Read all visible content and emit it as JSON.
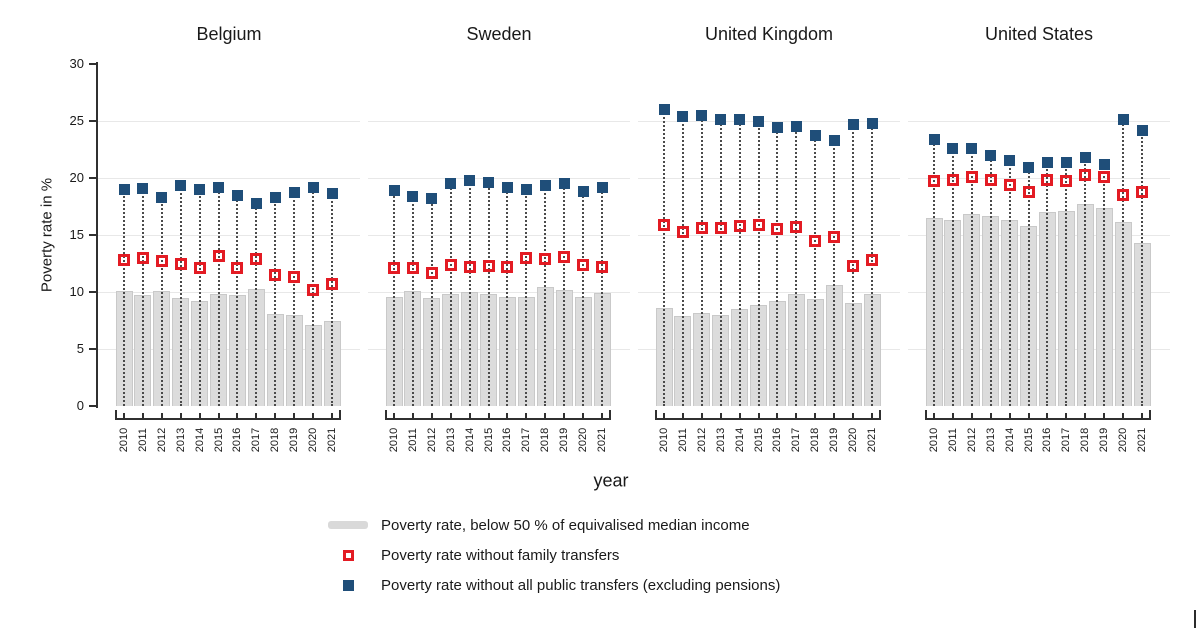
{
  "chart_data": {
    "type": "bar",
    "title": "",
    "xlabel": "year",
    "ylabel": "Poverty rate in %",
    "ylim": [
      0,
      30
    ],
    "yticks": [
      0,
      5,
      10,
      15,
      20,
      25,
      30
    ],
    "gridlines": [
      5,
      10,
      15,
      20,
      25
    ],
    "grid": "horizontal-only",
    "legend_position": "bottom-center",
    "years": [
      "2010",
      "2011",
      "2012",
      "2013",
      "2014",
      "2015",
      "2016",
      "2017",
      "2018",
      "2019",
      "2020",
      "2021"
    ],
    "colors": {
      "bar_fill": "#dcdcdc",
      "bar_border": "#c9c9c9",
      "red_marker": "#e31b23",
      "navy_marker": "#1f4e79",
      "dropline": "#4a4a4a",
      "gridline": "#e8e8e8",
      "axis": "#303030"
    },
    "legend": [
      {
        "series": "poverty_rate",
        "marker": "gray-bar",
        "label": "Poverty rate, below 50 % of equivalised median income"
      },
      {
        "series": "without_family_transfers",
        "marker": "hollow-red-square",
        "label": "Poverty rate without family transfers"
      },
      {
        "series": "without_public_transfers",
        "marker": "filled-navy-square",
        "label": "Poverty rate without all public transfers (excluding pensions)"
      }
    ],
    "panels": [
      {
        "title": "Belgium",
        "poverty_rate": [
          10.1,
          9.7,
          10.1,
          9.5,
          9.2,
          9.8,
          9.7,
          10.3,
          8.1,
          8.0,
          7.1,
          7.5
        ],
        "without_family_transfers": [
          12.8,
          13.0,
          12.7,
          12.5,
          12.1,
          13.2,
          12.1,
          12.9,
          11.5,
          11.3,
          10.2,
          10.7
        ],
        "without_public_transfers": [
          19.0,
          19.1,
          18.3,
          19.3,
          19.0,
          19.2,
          18.5,
          17.8,
          18.3,
          18.7,
          19.2,
          18.6
        ]
      },
      {
        "title": "Sweden",
        "poverty_rate": [
          9.6,
          10.1,
          9.5,
          9.8,
          10.0,
          9.8,
          9.6,
          9.6,
          10.4,
          10.2,
          9.6,
          9.9
        ],
        "without_family_transfers": [
          12.1,
          12.1,
          11.7,
          12.4,
          12.2,
          12.3,
          12.2,
          13.0,
          12.9,
          13.1,
          12.4,
          12.2
        ],
        "without_public_transfers": [
          18.9,
          18.4,
          18.2,
          19.5,
          19.8,
          19.6,
          19.2,
          19.0,
          19.3,
          19.5,
          18.8,
          19.2
        ]
      },
      {
        "title": "United Kingdom",
        "poverty_rate": [
          8.6,
          7.9,
          8.2,
          8.0,
          8.5,
          8.9,
          9.2,
          9.8,
          9.4,
          10.6,
          9.0,
          9.8
        ],
        "without_family_transfers": [
          15.9,
          15.3,
          15.6,
          15.6,
          15.8,
          15.9,
          15.5,
          15.7,
          14.5,
          14.8,
          12.3,
          12.8
        ],
        "without_public_transfers": [
          26.0,
          25.4,
          25.5,
          25.1,
          25.1,
          25.0,
          24.4,
          24.5,
          23.7,
          23.3,
          24.7,
          24.8
        ]
      },
      {
        "title": "United States",
        "poverty_rate": [
          16.5,
          16.3,
          16.8,
          16.7,
          16.3,
          15.8,
          17.0,
          17.1,
          17.7,
          17.4,
          16.1,
          14.3
        ],
        "without_family_transfers": [
          19.7,
          19.8,
          20.1,
          19.8,
          19.4,
          18.8,
          19.8,
          19.7,
          20.3,
          20.1,
          18.5,
          18.8
        ],
        "without_public_transfers": [
          23.4,
          22.6,
          22.6,
          22.0,
          21.5,
          20.9,
          21.4,
          21.4,
          21.8,
          21.2,
          25.1,
          24.2
        ]
      }
    ]
  }
}
